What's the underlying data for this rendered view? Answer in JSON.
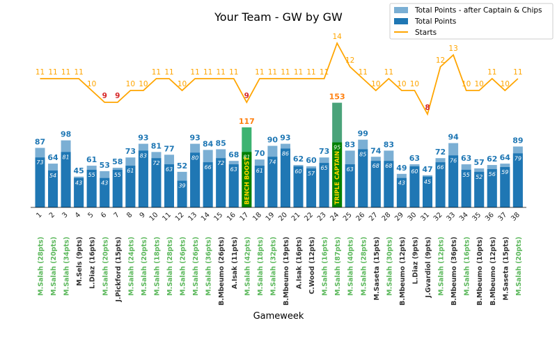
{
  "chart_data": {
    "type": "bar",
    "title": "Your Team - GW by GW",
    "xlabel": "Gameweek",
    "ylabel": "",
    "categories": [
      "1",
      "2",
      "3",
      "4",
      "5",
      "6",
      "7",
      "8",
      "9",
      "10",
      "11",
      "12",
      "13",
      "14",
      "15",
      "16",
      "17",
      "18",
      "19",
      "20",
      "21",
      "22",
      "23",
      "24",
      "25",
      "26",
      "27",
      "28",
      "29",
      "30",
      "31",
      "32",
      "33",
      "34",
      "35",
      "36",
      "37",
      "38"
    ],
    "legend": {
      "position": "top-right",
      "entries": [
        "Total Points - after Captain & Chips",
        "Total Points",
        "Starts"
      ]
    },
    "series": [
      {
        "name": "Total Points - after Captain & Chips",
        "values": [
          87,
          64,
          98,
          45,
          61,
          53,
          58,
          73,
          93,
          81,
          77,
          52,
          93,
          84,
          85,
          68,
          117,
          70,
          90,
          93,
          62,
          60,
          73,
          153,
          83,
          99,
          74,
          83,
          49,
          63,
          47,
          72,
          94,
          63,
          57,
          62,
          64,
          89
        ]
      },
      {
        "name": "Total Points",
        "values": [
          73,
          54,
          81,
          43,
          55,
          43,
          55,
          61,
          83,
          72,
          63,
          39,
          80,
          66,
          72,
          63,
          81,
          61,
          74,
          86,
          60,
          57,
          65,
          95,
          63,
          85,
          68,
          68,
          43,
          60,
          45,
          66,
          76,
          55,
          52,
          56,
          59,
          79
        ]
      },
      {
        "name": "Starts",
        "values": [
          11,
          11,
          11,
          11,
          10,
          9,
          9,
          10,
          10,
          11,
          11,
          10,
          11,
          11,
          11,
          11,
          9,
          11,
          11,
          11,
          11,
          11,
          11,
          14,
          12,
          11,
          10,
          11,
          10,
          10,
          8,
          12,
          13,
          10,
          10,
          11,
          10,
          11
        ]
      }
    ],
    "captains": [
      "M.Salah (28pts)",
      "M.Salah (20pts)",
      "M.Salah (34pts)",
      "M.Sels (9pts)",
      "L.Diaz (16pts)",
      "M.Salah (20pts)",
      "J.Pickford (15pts)",
      "M.Salah (24pts)",
      "M.Salah (20pts)",
      "M.Salah (18pts)",
      "M.Salah (28pts)",
      "M.Salah (26pts)",
      "M.Salah (26pts)",
      "M.Salah (36pts)",
      "B.Mbeumo (26pts)",
      "A.Isak (11pts)",
      "M.Salah (42pts)",
      "M.Salah (18pts)",
      "M.Salah (32pts)",
      "B.Mbeumo (19pts)",
      "A.Isak (16pts)",
      "C.Wood (12pts)",
      "M.Salah (16pts)",
      "M.Salah (87pts)",
      "M.Salah (40pts)",
      "M.Salah (28pts)",
      "M.Saseta (15pts)",
      "M.Salah (30pts)",
      "B.Mbeumo (12pts)",
      "L.Diaz (9pts)",
      "J.Gvardiol (9pts)",
      "M.Salah (12pts)",
      "B.Mbeumo (36pts)",
      "M.Salah (16pts)",
      "B.Mbeumo (10pts)",
      "B.Mbeumo (12pts)",
      "M.Saseta (15pts)",
      "M.Salah (20pts)"
    ],
    "chip_annotations": [
      {
        "gameweek": "17",
        "text": "BENCH BOOST"
      },
      {
        "gameweek": "24",
        "text": "TRIPLE CAPTAIN"
      }
    ],
    "colors": {
      "after_captain": "#7bafd4",
      "total_points": "#1f77b4",
      "starts_line": "#ffa500",
      "bench_boost": "#008000",
      "triple_captain": "#2e8b57",
      "highlight_label": "#ff7f0e",
      "low_starts": "#d62728",
      "captain_salah": "#5cb85c",
      "captain_other": "#333333",
      "chip_text": "#ffd700"
    }
  }
}
